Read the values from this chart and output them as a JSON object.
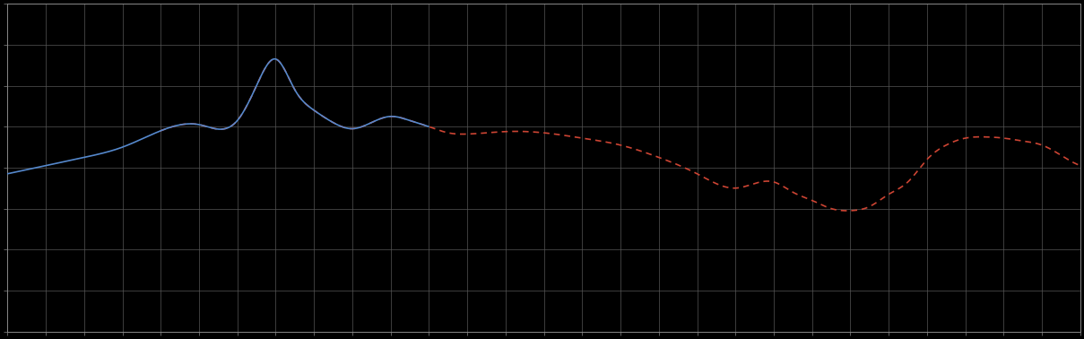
{
  "background_color": "#000000",
  "plot_bg_color": "#000000",
  "grid_color": "#555555",
  "line1_color": "#5588cc",
  "line2_color": "#cc4433",
  "line_width": 1.2,
  "figsize": [
    12.09,
    3.78
  ],
  "dpi": 100,
  "n_xgrid": 28,
  "n_ygrid": 8,
  "ylim": [
    0,
    8
  ],
  "xlim": [
    0,
    28
  ]
}
